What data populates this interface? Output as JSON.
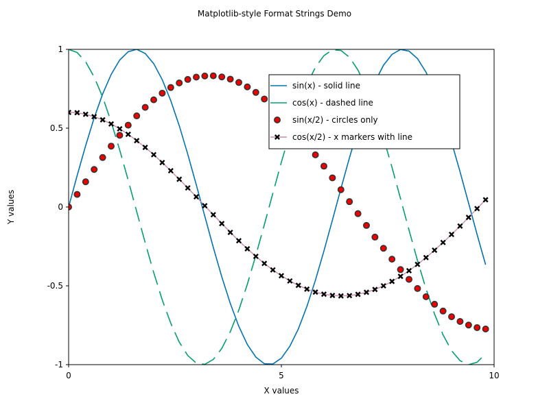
{
  "chart_data": {
    "type": "line",
    "title": "Matplotlib-style Format Strings Demo",
    "xlabel": "X values",
    "ylabel": "Y values",
    "xlim": [
      0,
      10
    ],
    "ylim": [
      -1,
      1
    ],
    "xticks": [
      0,
      5,
      10
    ],
    "xtick_labels": [
      "0",
      "5",
      "10"
    ],
    "yticks": [
      -1,
      -0.5,
      0,
      0.5,
      1
    ],
    "ytick_labels": [
      "-1",
      "-0.5",
      "0",
      "0.5",
      "1"
    ],
    "grid": false,
    "legend_position": "upper right",
    "x": [
      0,
      0.2,
      0.4,
      0.6,
      0.8,
      1.0,
      1.2,
      1.4,
      1.6,
      1.8,
      2.0,
      2.2,
      2.4,
      2.6,
      2.8,
      3.0,
      3.2,
      3.4,
      3.6,
      3.8,
      4.0,
      4.2,
      4.4,
      4.6,
      4.8,
      5.0,
      5.2,
      5.4,
      5.6,
      5.8,
      6.0,
      6.2,
      6.4,
      6.6,
      6.8,
      7.0,
      7.2,
      7.4,
      7.6,
      7.8,
      8.0,
      8.2,
      8.4,
      8.6,
      8.8,
      9.0,
      9.2,
      9.4,
      9.6,
      9.8
    ],
    "series": [
      {
        "name": "sin(x) - solid line",
        "style": "solid",
        "color": "#0072b2",
        "values": [
          0.0,
          0.199,
          0.389,
          0.565,
          0.717,
          0.841,
          0.932,
          0.985,
          1.0,
          0.974,
          0.909,
          0.808,
          0.675,
          0.516,
          0.335,
          0.141,
          -0.058,
          -0.256,
          -0.443,
          -0.612,
          -0.757,
          -0.872,
          -0.952,
          -0.994,
          -0.996,
          -0.959,
          -0.883,
          -0.773,
          -0.631,
          -0.465,
          -0.279,
          -0.083,
          0.117,
          0.312,
          0.494,
          0.657,
          0.794,
          0.899,
          0.968,
          0.999,
          0.989,
          0.941,
          0.855,
          0.734,
          0.585,
          0.412,
          0.223,
          0.025,
          -0.174,
          -0.366
        ]
      },
      {
        "name": "cos(x) - dashed line",
        "style": "dashed",
        "color": "#009e73",
        "values": [
          1.0,
          0.98,
          0.921,
          0.825,
          0.697,
          0.54,
          0.362,
          0.17,
          -0.029,
          -0.227,
          -0.416,
          -0.589,
          -0.737,
          -0.857,
          -0.942,
          -0.99,
          -0.998,
          -0.967,
          -0.897,
          -0.791,
          -0.654,
          -0.49,
          -0.307,
          -0.112,
          0.087,
          0.284,
          0.469,
          0.635,
          0.776,
          0.886,
          0.96,
          0.997,
          0.993,
          0.95,
          0.869,
          0.754,
          0.608,
          0.438,
          0.252,
          0.054,
          -0.146,
          -0.34,
          -0.519,
          -0.679,
          -0.811,
          -0.911,
          -0.975,
          -1.0,
          -0.985,
          -0.931
        ]
      },
      {
        "name": "sin(x/2) - circles only",
        "style": "markers-circle",
        "color": "#ee0000",
        "edge_color": "#333333",
        "values": [
          0.0,
          0.08,
          0.16,
          0.238,
          0.314,
          0.386,
          0.455,
          0.519,
          0.578,
          0.632,
          0.68,
          0.722,
          0.758,
          0.787,
          0.809,
          0.824,
          0.831,
          0.832,
          0.825,
          0.811,
          0.79,
          0.762,
          0.727,
          0.685,
          0.638,
          0.585,
          0.528,
          0.466,
          0.4,
          0.331,
          0.259,
          0.185,
          0.11,
          0.034,
          -0.042,
          -0.117,
          -0.191,
          -0.262,
          -0.331,
          -0.397,
          -0.459,
          -0.517,
          -0.569,
          -0.617,
          -0.66,
          -0.696,
          -0.726,
          -0.749,
          -0.765,
          -0.774
        ]
      },
      {
        "name": "cos(x/2) - x markers with line",
        "style": "line-markers-x",
        "color": "#000000",
        "line_color": "#cc88aa",
        "values": [
          0.6,
          0.598,
          0.588,
          0.573,
          0.553,
          0.527,
          0.496,
          0.461,
          0.421,
          0.378,
          0.332,
          0.282,
          0.23,
          0.176,
          0.121,
          0.065,
          0.008,
          -0.049,
          -0.105,
          -0.161,
          -0.214,
          -0.265,
          -0.313,
          -0.358,
          -0.399,
          -0.436,
          -0.469,
          -0.497,
          -0.521,
          -0.54,
          -0.553,
          -0.561,
          -0.564,
          -0.562,
          -0.554,
          -0.541,
          -0.523,
          -0.5,
          -0.472,
          -0.44,
          -0.404,
          -0.364,
          -0.321,
          -0.274,
          -0.225,
          -0.174,
          -0.121,
          -0.066,
          -0.01,
          0.046
        ]
      }
    ]
  }
}
